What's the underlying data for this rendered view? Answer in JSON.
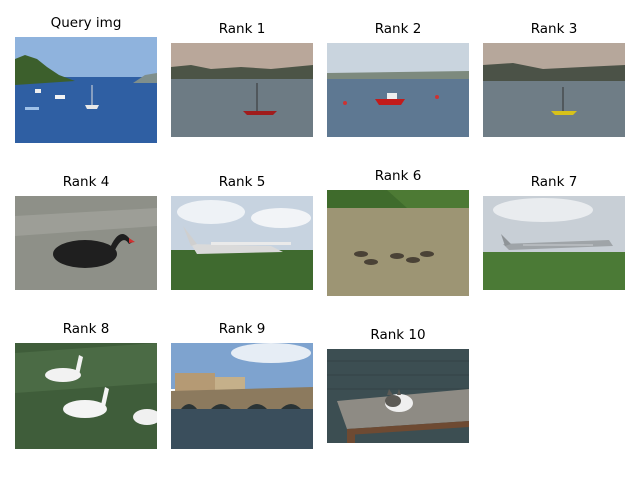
{
  "figure": {
    "query": {
      "label": "Query img",
      "scene": "harbor-sailboats"
    },
    "results": [
      {
        "label": "Rank 1",
        "scene": "bay-red-sailboat"
      },
      {
        "label": "Rank 2",
        "scene": "estuary-red-motorboat"
      },
      {
        "label": "Rank 3",
        "scene": "bay-yellow-sailboat"
      },
      {
        "label": "Rank 4",
        "scene": "black-swan"
      },
      {
        "label": "Rank 5",
        "scene": "light-aircraft-on-grass"
      },
      {
        "label": "Rank 6",
        "scene": "geese-on-pond"
      },
      {
        "label": "Rank 7",
        "scene": "propeller-airliner-on-field"
      },
      {
        "label": "Rank 8",
        "scene": "white-geese-swimming"
      },
      {
        "label": "Rank 9",
        "scene": "stone-bridge-river"
      },
      {
        "label": "Rank 10",
        "scene": "cat-on-table"
      }
    ]
  }
}
